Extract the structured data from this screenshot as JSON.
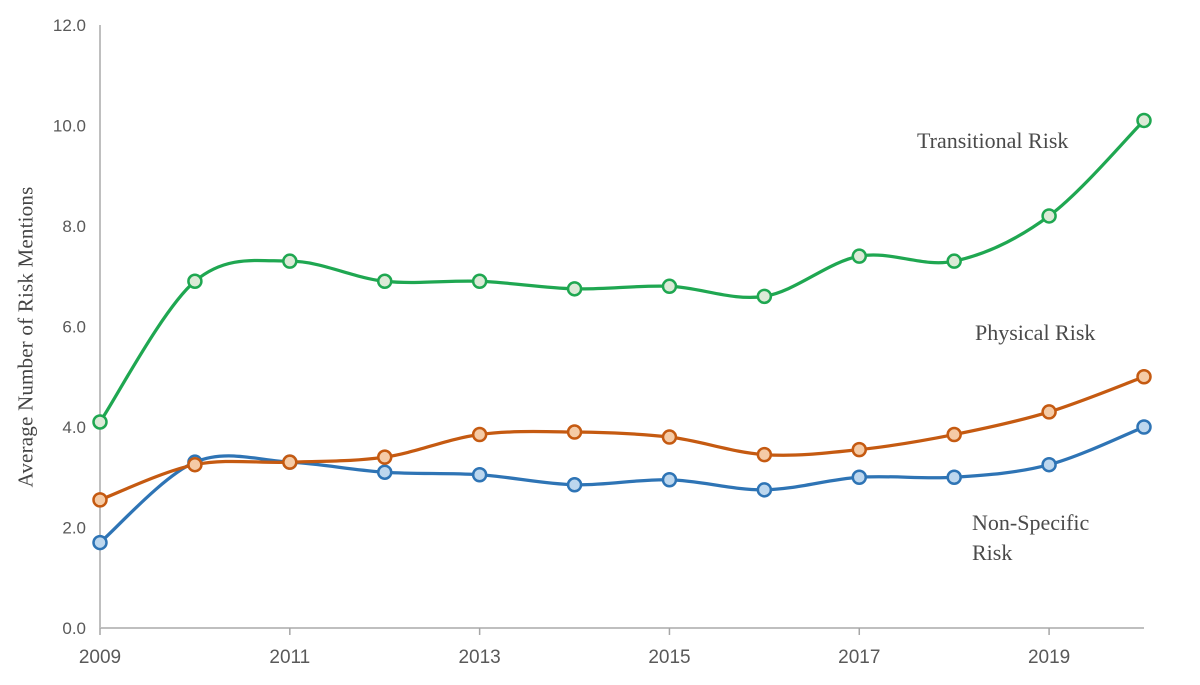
{
  "page": {
    "background_color": "#ffffff"
  },
  "chart_data": {
    "type": "line",
    "title": "",
    "xlabel": "",
    "ylabel": "Average Number of Risk Mentions",
    "x": [
      2009,
      2010,
      2011,
      2012,
      2013,
      2014,
      2015,
      2016,
      2017,
      2018,
      2019,
      2020
    ],
    "series": [
      {
        "name": "Transitional Risk",
        "color": "#1fa751",
        "marker_fill": "#dcead7",
        "values": [
          4.1,
          6.9,
          7.3,
          6.9,
          6.9,
          6.75,
          6.8,
          6.6,
          7.4,
          7.3,
          8.2,
          10.1
        ]
      },
      {
        "name": "Physical Risk",
        "color": "#c55a11",
        "marker_fill": "#f5cba6",
        "values": [
          2.55,
          3.25,
          3.3,
          3.4,
          3.85,
          3.9,
          3.8,
          3.45,
          3.55,
          3.85,
          4.3,
          5.0
        ]
      },
      {
        "name": "Non-Specific Risk",
        "color": "#2e74b5",
        "marker_fill": "#bdd7ee",
        "values": [
          1.7,
          3.3,
          3.3,
          3.1,
          3.05,
          2.85,
          2.95,
          2.75,
          3.0,
          3.0,
          3.25,
          4.0
        ]
      }
    ],
    "ylim": [
      0,
      12
    ],
    "ytick_values": [
      0,
      2,
      4,
      6,
      8,
      10,
      12
    ],
    "ytick_labels": [
      "0.0",
      "2.0",
      "4.0",
      "6.0",
      "8.0",
      "10.0",
      "12.0"
    ],
    "xtick_values": [
      2009,
      2011,
      2013,
      2015,
      2017,
      2019
    ],
    "xtick_labels": [
      "2009",
      "2011",
      "2013",
      "2015",
      "2017",
      "2019"
    ],
    "grid": "off",
    "legend": "inline-annotations",
    "line_style": "smoothed",
    "annotations": [
      {
        "id": "transitional",
        "text": "Transitional Risk"
      },
      {
        "id": "physical",
        "text": "Physical Risk"
      },
      {
        "id": "nonspecific",
        "line1": "Non-Specific",
        "line2": "Risk"
      }
    ]
  },
  "axis_style": {
    "axis_line_color": "#bfbfbf",
    "tick_mark_color": "#a6a6a6",
    "tick_label_color": "#595959",
    "title_color": "#444444",
    "annotation_color": "#4a4a4a"
  }
}
